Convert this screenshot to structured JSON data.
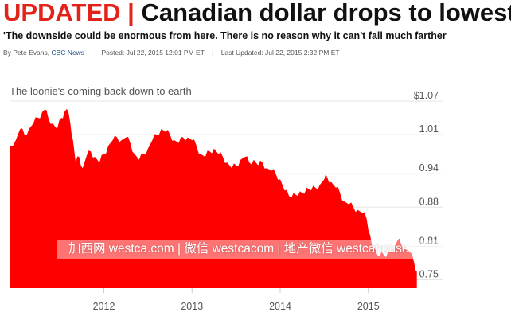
{
  "article": {
    "updated_label": "UPDATED",
    "separator": "|",
    "headline": "Canadian dollar drops to lowest",
    "deck": "'The downside could be enormous from here. There is no reason why it can't fall much farther",
    "byline": {
      "prefix": "By Pete Evans,",
      "source": "CBC News",
      "posted": "Posted: Jul 22, 2015 12:01 PM ET",
      "separator": "|",
      "updated": "Last Updated: Jul 22, 2015 2:32 PM ET"
    }
  },
  "watermark": "加西网 westca.com | 微信 westcacom | 地产微信 westcahouse",
  "colors": {
    "accent": "#e2231a",
    "fill": "#ff0000",
    "source_link": "#1b4f8a"
  },
  "chart_data": {
    "type": "area",
    "title": "The loonie's coming back down to earth",
    "y_tick_labels": [
      "$1.07",
      "1.01",
      "0.94",
      "0.88",
      "0.81",
      "0.75"
    ],
    "y_ticks": [
      1.07,
      1.01,
      0.94,
      0.88,
      0.81,
      0.75
    ],
    "x_tick_labels": [
      "2012",
      "2013",
      "2014",
      "2015"
    ],
    "x_ticks": [
      2012,
      2013,
      2014,
      2015
    ],
    "ylim": [
      0.735,
      1.07
    ],
    "xlim": [
      2010.93,
      2015.58
    ],
    "grid": "horizontal",
    "series": [
      {
        "values": [
          [
            2010.93,
            0.99
          ],
          [
            2011.0,
            1.0
          ],
          [
            2011.05,
            1.02
          ],
          [
            2011.1,
            1.01
          ],
          [
            2011.15,
            1.02
          ],
          [
            2011.2,
            1.03
          ],
          [
            2011.25,
            1.04
          ],
          [
            2011.3,
            1.05
          ],
          [
            2011.33,
            1.055
          ],
          [
            2011.37,
            1.04
          ],
          [
            2011.42,
            1.03
          ],
          [
            2011.47,
            1.02
          ],
          [
            2011.52,
            1.04
          ],
          [
            2011.55,
            1.05
          ],
          [
            2011.58,
            1.056
          ],
          [
            2011.62,
            1.03
          ],
          [
            2011.65,
            1.0
          ],
          [
            2011.68,
            0.96
          ],
          [
            2011.72,
            0.97
          ],
          [
            2011.76,
            0.95
          ],
          [
            2011.8,
            0.97
          ],
          [
            2011.85,
            0.98
          ],
          [
            2011.9,
            0.97
          ],
          [
            2011.95,
            0.96
          ],
          [
            2012.0,
            0.975
          ],
          [
            2012.05,
            0.99
          ],
          [
            2012.1,
            1.0
          ],
          [
            2012.15,
            1.005
          ],
          [
            2012.2,
            1.0
          ],
          [
            2012.25,
            1.005
          ],
          [
            2012.3,
            0.995
          ],
          [
            2012.35,
            0.975
          ],
          [
            2012.4,
            0.965
          ],
          [
            2012.45,
            0.975
          ],
          [
            2012.5,
            0.985
          ],
          [
            2012.55,
            1.0
          ],
          [
            2012.6,
            1.01
          ],
          [
            2012.65,
            1.02
          ],
          [
            2012.7,
            1.015
          ],
          [
            2012.75,
            1.01
          ],
          [
            2012.8,
            1.0
          ],
          [
            2012.85,
            0.995
          ],
          [
            2012.9,
            1.005
          ],
          [
            2012.95,
            1.005
          ],
          [
            2013.0,
            1.0
          ],
          [
            2013.05,
            0.99
          ],
          [
            2013.1,
            0.975
          ],
          [
            2013.15,
            0.97
          ],
          [
            2013.2,
            0.98
          ],
          [
            2013.25,
            0.985
          ],
          [
            2013.3,
            0.975
          ],
          [
            2013.35,
            0.97
          ],
          [
            2013.4,
            0.96
          ],
          [
            2013.45,
            0.95
          ],
          [
            2013.5,
            0.955
          ],
          [
            2013.55,
            0.965
          ],
          [
            2013.6,
            0.97
          ],
          [
            2013.65,
            0.96
          ],
          [
            2013.7,
            0.965
          ],
          [
            2013.75,
            0.955
          ],
          [
            2013.8,
            0.96
          ],
          [
            2013.85,
            0.95
          ],
          [
            2013.9,
            0.945
          ],
          [
            2013.95,
            0.94
          ],
          [
            2014.0,
            0.93
          ],
          [
            2014.05,
            0.91
          ],
          [
            2014.1,
            0.9
          ],
          [
            2014.15,
            0.905
          ],
          [
            2014.2,
            0.9
          ],
          [
            2014.25,
            0.905
          ],
          [
            2014.3,
            0.915
          ],
          [
            2014.35,
            0.91
          ],
          [
            2014.4,
            0.915
          ],
          [
            2014.45,
            0.92
          ],
          [
            2014.5,
            0.93
          ],
          [
            2014.53,
            0.935
          ],
          [
            2014.58,
            0.925
          ],
          [
            2014.63,
            0.915
          ],
          [
            2014.68,
            0.905
          ],
          [
            2014.73,
            0.89
          ],
          [
            2014.78,
            0.885
          ],
          [
            2014.83,
            0.88
          ],
          [
            2014.88,
            0.875
          ],
          [
            2014.93,
            0.87
          ],
          [
            2014.98,
            0.86
          ],
          [
            2015.02,
            0.83
          ],
          [
            2015.05,
            0.805
          ],
          [
            2015.1,
            0.795
          ],
          [
            2015.15,
            0.8
          ],
          [
            2015.2,
            0.79
          ],
          [
            2015.25,
            0.8
          ],
          [
            2015.3,
            0.81
          ],
          [
            2015.33,
            0.82
          ],
          [
            2015.37,
            0.815
          ],
          [
            2015.42,
            0.805
          ],
          [
            2015.47,
            0.8
          ],
          [
            2015.52,
            0.78
          ],
          [
            2015.55,
            0.766
          ]
        ]
      }
    ]
  }
}
